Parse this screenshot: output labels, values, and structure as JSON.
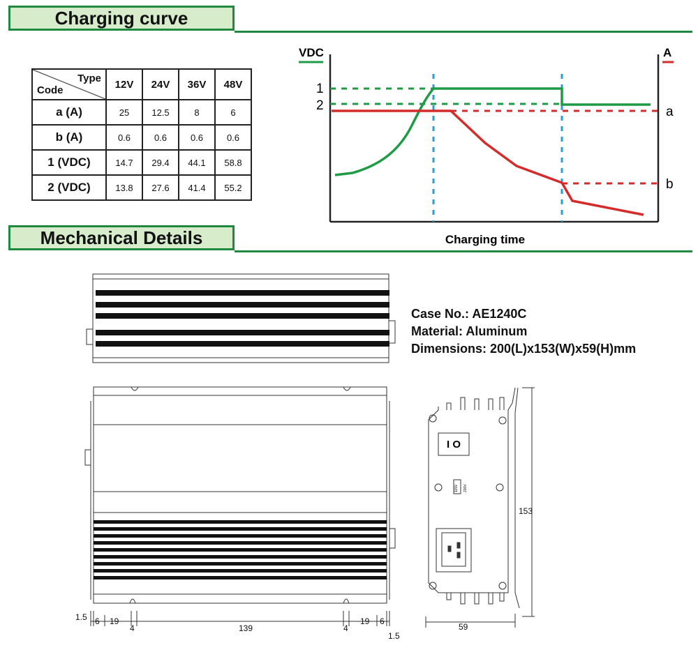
{
  "sections": {
    "charging_title": "Charging curve",
    "mechanical_title": "Mechanical Details"
  },
  "table": {
    "header_type": "Type",
    "header_code": "Code",
    "columns": [
      "12V",
      "24V",
      "36V",
      "48V"
    ],
    "rows": [
      {
        "code": "a (A)",
        "values": [
          "25",
          "12.5",
          "8",
          "6"
        ]
      },
      {
        "code": "b (A)",
        "values": [
          "0.6",
          "0.6",
          "0.6",
          "0.6"
        ]
      },
      {
        "code": "1 (VDC)",
        "values": [
          "14.7",
          "29.4",
          "44.1",
          "58.8"
        ]
      },
      {
        "code": "2 (VDC)",
        "values": [
          "13.8",
          "27.6",
          "41.4",
          "55.2"
        ]
      }
    ]
  },
  "curve": {
    "left_unit": "VDC",
    "right_unit": "A",
    "level_1": "1",
    "level_2": "2",
    "level_a": "a",
    "level_b": "b",
    "xlabel": "Charging time",
    "voltage_color": "#1f9a45",
    "current_color": "#d42b2b",
    "guide_color": "#2a9fd6"
  },
  "case_info": {
    "case_no": "Case No.: AE1240C",
    "material": "Material: Aluminum",
    "dimensions": "Dimensions: 200(L)x153(W)x59(H)mm"
  },
  "dims": {
    "d_1_5_left": "1.5",
    "d_6_left": "6",
    "d_19_left": "19",
    "d_4_left": "4",
    "d_139": "139",
    "d_4_right": "4",
    "d_19_right": "19",
    "d_6_right": "6",
    "d_1_5_right": "1.5",
    "d_59": "59",
    "d_153": "153",
    "switch_label": "I  O",
    "selector_top": "115V",
    "selector_bottom": "230V"
  }
}
